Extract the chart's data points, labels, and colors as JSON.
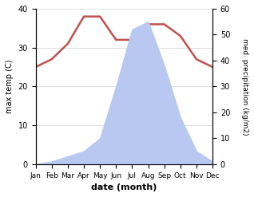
{
  "months": [
    "Jan",
    "Feb",
    "Mar",
    "Apr",
    "May",
    "Jun",
    "Jul",
    "Aug",
    "Sep",
    "Oct",
    "Nov",
    "Dec"
  ],
  "temp": [
    25,
    27,
    31,
    38,
    38,
    32,
    32,
    36,
    36,
    33,
    27,
    25
  ],
  "precip": [
    0,
    1,
    3,
    5,
    10,
    30,
    52,
    55,
    38,
    18,
    5,
    1
  ],
  "temp_color": "#c0504d",
  "fill_color": "#b8c8f0",
  "temp_ylim": [
    0,
    40
  ],
  "precip_ylim": [
    0,
    60
  ],
  "xlabel": "date (month)",
  "ylabel_left": "max temp (C)",
  "ylabel_right": "med. precipitation (kg/m2)",
  "bg_color": "#ffffff",
  "grid_color": "#d0d0d0"
}
